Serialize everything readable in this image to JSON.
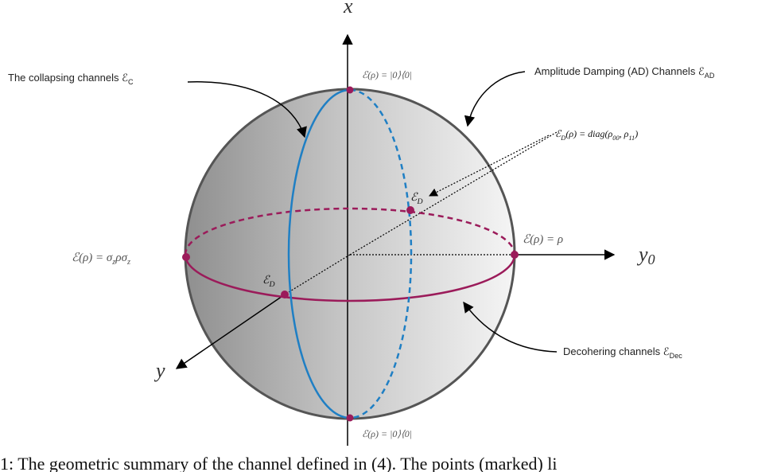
{
  "axes": {
    "x": [
      "x"
    ],
    "y": [
      "y"
    ],
    "y0": [
      "y",
      "0"
    ]
  },
  "labels": {
    "collapsing": [
      "The collapsing channels ℰ",
      "C"
    ],
    "amplitude_damping": [
      "Amplitude Damping (AD) Channels ℰ",
      "AD"
    ],
    "decohering": [
      "Decohering channels  ℰ",
      "Dec"
    ],
    "diag": [
      "ℰ",
      "D",
      "(ρ) = diag(ρ",
      "00",
      ", ρ",
      "11",
      ")"
    ],
    "top_point": [
      "ℰ(ρ) = |0⟩⟨0|"
    ],
    "bottom_point": [
      "ℰ(ρ) = |0⟩⟨0|"
    ],
    "right_point": [
      "ℰ(ρ) = ρ"
    ],
    "left_point": [
      "ℰ(ρ) = σ",
      "z",
      "ρσ",
      "z"
    ],
    "d_upper": [
      "ℰ",
      "D"
    ],
    "d_lower": [
      "ℰ",
      "D"
    ]
  },
  "caption": "1: The geometric summary of the channel defined in (4). The points (marked) li"
}
